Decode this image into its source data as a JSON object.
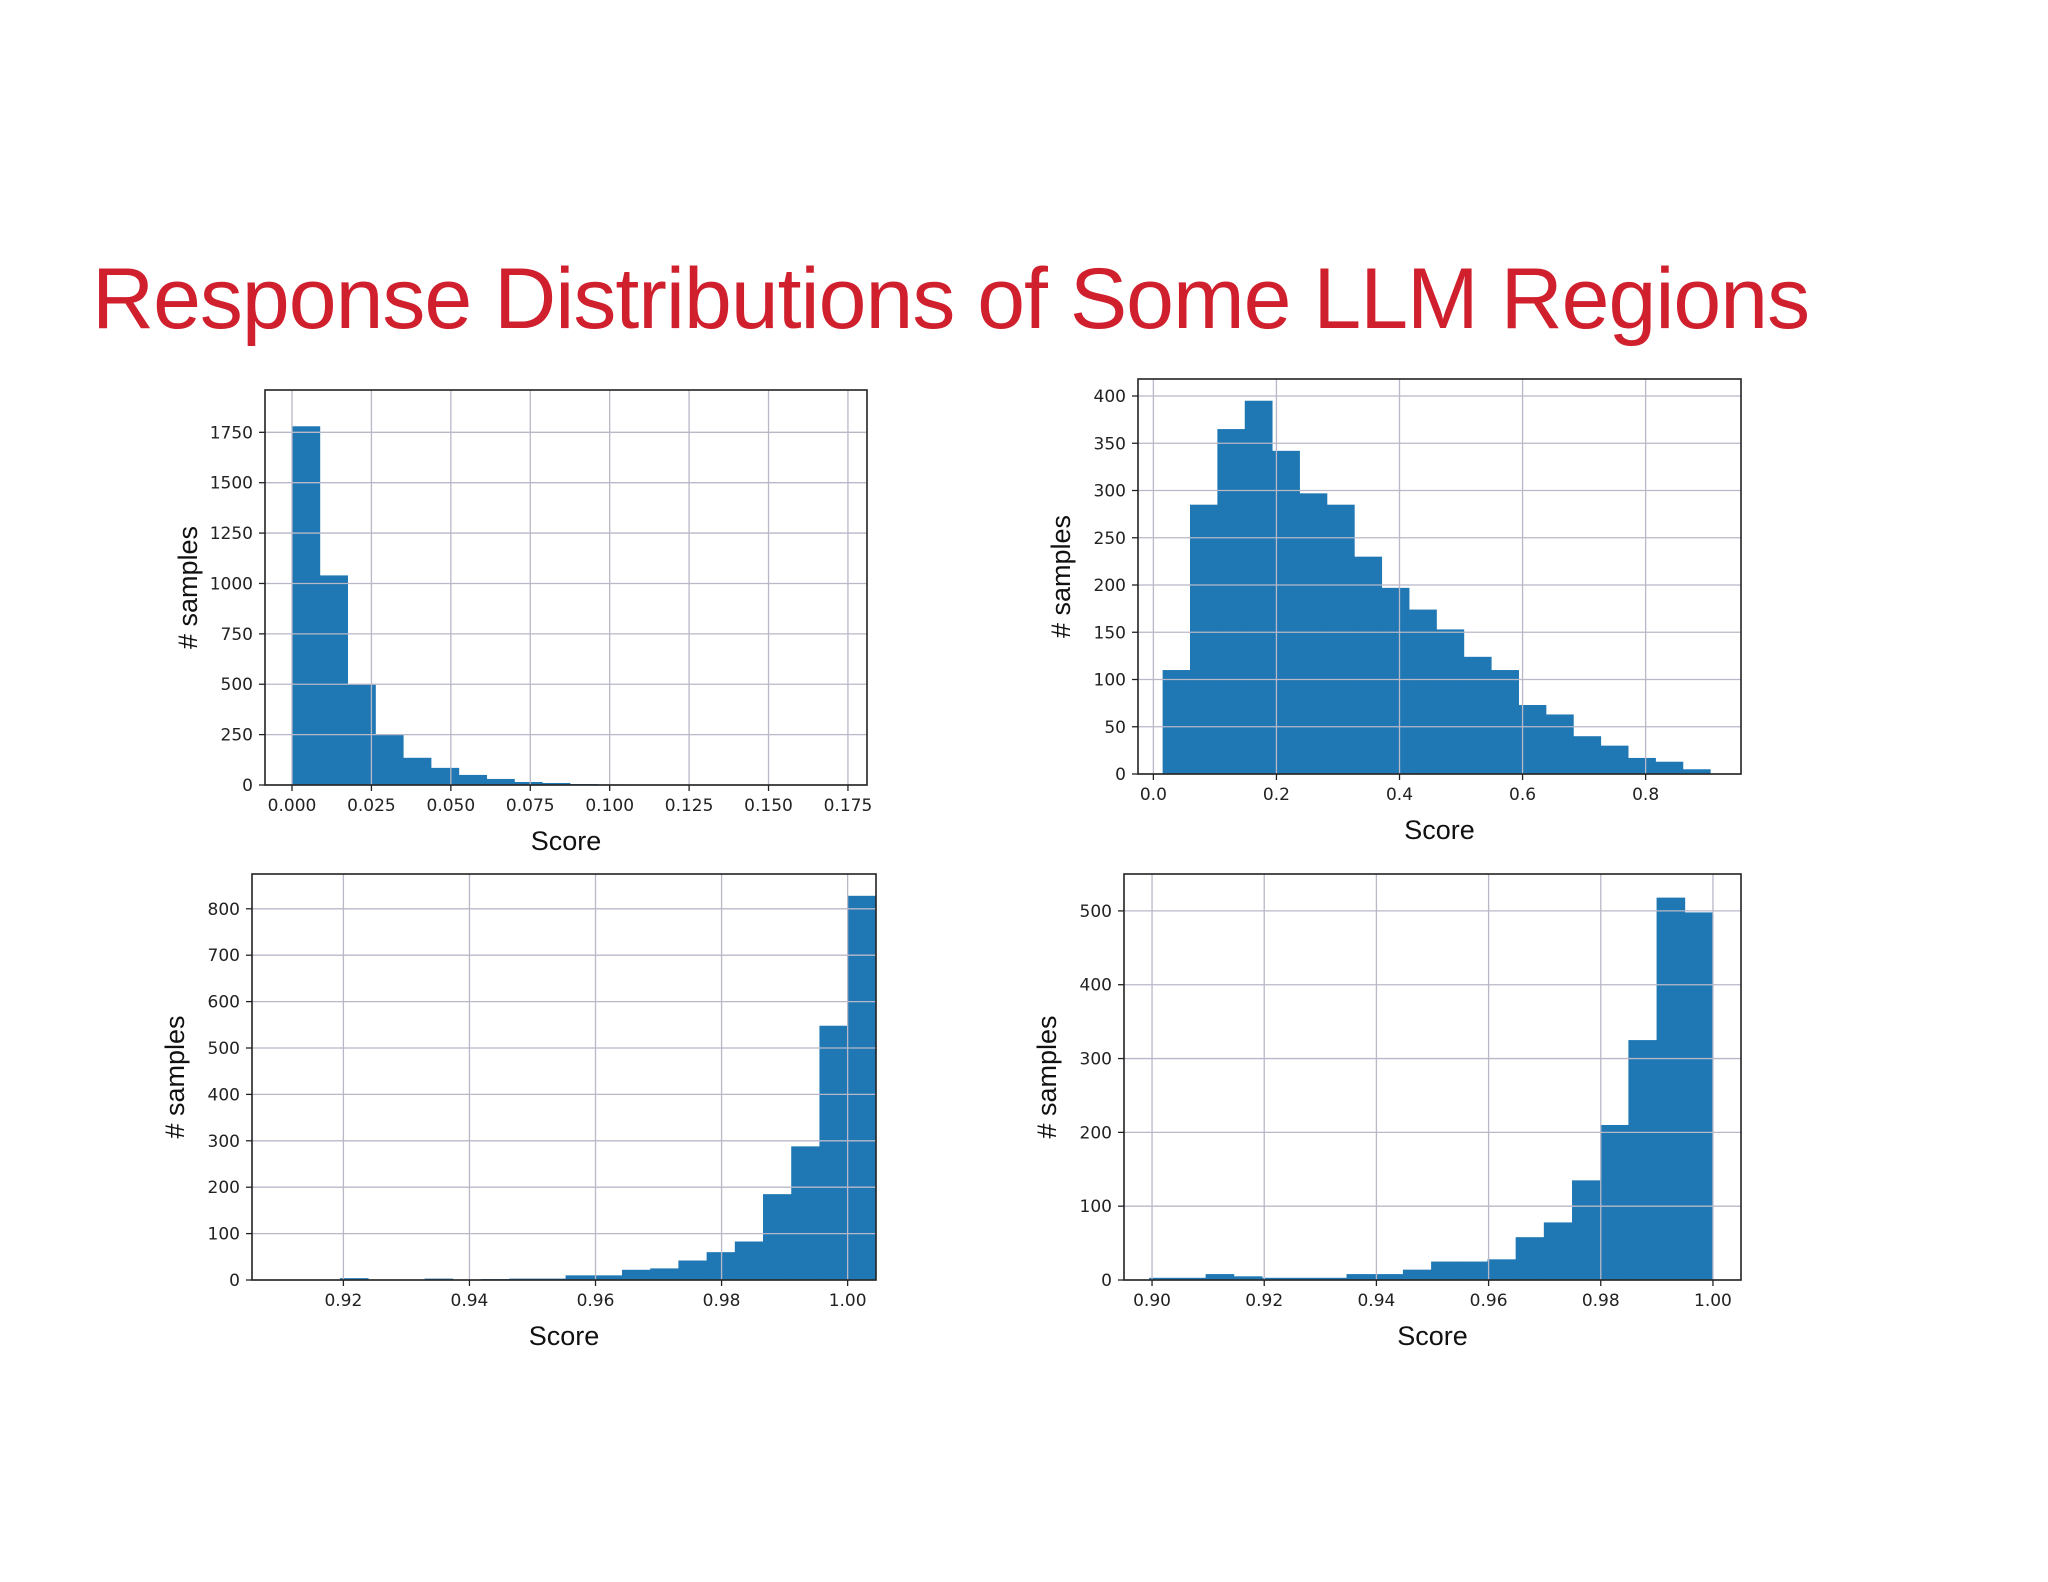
{
  "slide": {
    "title": "Response Distributions of Some LLM Regions",
    "accent_color": "#d0202e",
    "bar_color": "#1f77b4"
  },
  "chart_data": [
    {
      "type": "bar",
      "position": "top-left",
      "xlabel": "Score",
      "ylabel": "# samples",
      "xlim": [
        -0.0085,
        0.181
      ],
      "ylim": [
        0,
        1960
      ],
      "xticks": [
        0.0,
        0.025,
        0.05,
        0.075,
        0.1,
        0.125,
        0.15,
        0.175
      ],
      "xtick_labels": [
        "0.000",
        "0.025",
        "0.050",
        "0.075",
        "0.100",
        "0.125",
        "0.150",
        "0.175"
      ],
      "yticks": [
        0,
        250,
        500,
        750,
        1000,
        1250,
        1500,
        1750
      ],
      "ytick_labels": [
        "0",
        "250",
        "500",
        "750",
        "1000",
        "1250",
        "1500",
        "1750"
      ],
      "grid": true,
      "bins": {
        "start": 0.0,
        "width": 0.00875
      },
      "values": [
        1780,
        1040,
        500,
        250,
        135,
        85,
        50,
        30,
        15,
        10,
        5,
        3,
        2,
        1,
        1,
        1,
        0,
        0,
        0,
        1
      ]
    },
    {
      "type": "bar",
      "position": "top-right",
      "xlabel": "Score",
      "ylabel": "# samples",
      "xlim": [
        -0.025,
        0.955
      ],
      "ylim": [
        0,
        418
      ],
      "xticks": [
        0.0,
        0.2,
        0.4,
        0.6,
        0.8
      ],
      "xtick_labels": [
        "0.0",
        "0.2",
        "0.4",
        "0.6",
        "0.8"
      ],
      "yticks": [
        0,
        50,
        100,
        150,
        200,
        250,
        300,
        350,
        400
      ],
      "ytick_labels": [
        "0",
        "50",
        "100",
        "150",
        "200",
        "250",
        "300",
        "350",
        "400"
      ],
      "grid": true,
      "bins": {
        "start": 0.015,
        "width": 0.0445
      },
      "values": [
        110,
        285,
        365,
        395,
        342,
        297,
        285,
        230,
        197,
        174,
        153,
        124,
        110,
        73,
        63,
        40,
        30,
        17,
        13,
        5
      ]
    },
    {
      "type": "bar",
      "position": "bottom-left",
      "xlabel": "Score",
      "ylabel": "# samples",
      "xlim": [
        0.9055,
        1.0045
      ],
      "ylim": [
        0,
        875
      ],
      "xticks": [
        0.92,
        0.94,
        0.96,
        0.98,
        1.0
      ],
      "xtick_labels": [
        "0.92",
        "0.94",
        "0.96",
        "0.98",
        "1.00"
      ],
      "yticks": [
        0,
        100,
        200,
        300,
        400,
        500,
        600,
        700,
        800
      ],
      "ytick_labels": [
        "0",
        "100",
        "200",
        "300",
        "400",
        "500",
        "600",
        "700",
        "800"
      ],
      "grid": true,
      "bins": {
        "start": 0.9105,
        "width": 0.004475
      },
      "values": [
        0,
        0,
        4,
        0,
        0,
        3,
        0,
        2,
        3,
        3,
        10,
        10,
        22,
        25,
        42,
        60,
        83,
        185,
        288,
        548,
        828
      ]
    },
    {
      "type": "bar",
      "position": "bottom-right",
      "xlabel": "Score",
      "ylabel": "# samples",
      "xlim": [
        0.895,
        1.005
      ],
      "ylim": [
        0,
        550
      ],
      "xticks": [
        0.9,
        0.92,
        0.94,
        0.96,
        0.98,
        1.0
      ],
      "xtick_labels": [
        "0.90",
        "0.92",
        "0.94",
        "0.96",
        "0.98",
        "1.00"
      ],
      "yticks": [
        0,
        100,
        200,
        300,
        400,
        500
      ],
      "ytick_labels": [
        "0",
        "100",
        "200",
        "300",
        "400",
        "500"
      ],
      "grid": true,
      "bins": {
        "start": 0.8995,
        "width": 0.005025
      },
      "values": [
        3,
        3,
        8,
        5,
        3,
        3,
        3,
        8,
        8,
        14,
        25,
        25,
        28,
        58,
        78,
        135,
        210,
        325,
        518,
        498
      ]
    }
  ]
}
